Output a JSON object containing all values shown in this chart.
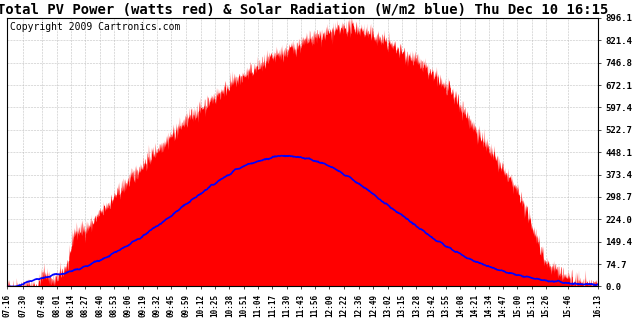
{
  "title": "Total PV Power (watts red) & Solar Radiation (W/m2 blue) Thu Dec 10 16:15",
  "copyright": "Copyright 2009 Cartronics.com",
  "y_max": 896.1,
  "y_min": 0.0,
  "y_ticks": [
    0.0,
    74.7,
    149.4,
    224.0,
    298.7,
    373.4,
    448.1,
    522.7,
    597.4,
    672.1,
    746.8,
    821.4,
    896.1
  ],
  "y_tick_labels": [
    "0.0",
    "74.7",
    "149.4",
    "224.0",
    "298.7",
    "373.4",
    "448.1",
    "522.7",
    "597.4",
    "672.1",
    "746.8",
    "821.4",
    "896.1"
  ],
  "x_labels": [
    "07:16",
    "07:30",
    "07:48",
    "08:01",
    "08:14",
    "08:27",
    "08:40",
    "08:53",
    "09:06",
    "09:19",
    "09:32",
    "09:45",
    "09:59",
    "10:12",
    "10:25",
    "10:38",
    "10:51",
    "11:04",
    "11:17",
    "11:30",
    "11:43",
    "11:56",
    "12:09",
    "12:22",
    "12:36",
    "12:49",
    "13:02",
    "13:15",
    "13:28",
    "13:42",
    "13:55",
    "14:08",
    "14:21",
    "14:34",
    "14:47",
    "15:00",
    "15:13",
    "15:26",
    "15:46",
    "16:13"
  ],
  "fill_color": "#ff0000",
  "line_color": "#0000ff",
  "background_color": "#ffffff",
  "grid_color": "#bbbbbb",
  "title_fontsize": 10,
  "copyright_fontsize": 7,
  "pv_peak": 870,
  "pv_peak_hour": 12.5,
  "sol_peak": 435,
  "sol_peak_hour": 11.5
}
